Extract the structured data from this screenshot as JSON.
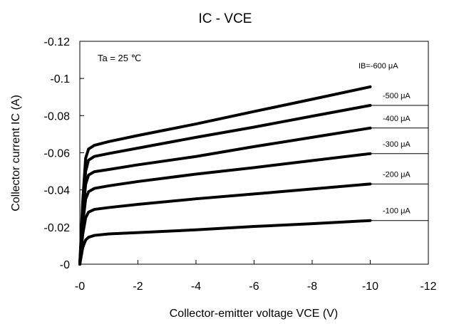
{
  "chart_data": {
    "type": "line",
    "title": "IC - VCE",
    "xlabel": "Collector-emitter voltage VCE (V)",
    "ylabel": "Collector current IC (A)",
    "xlim": [
      0,
      -12
    ],
    "ylim": [
      0,
      -0.12
    ],
    "x_ticks": [
      "-0",
      "-2",
      "-4",
      "-6",
      "-8",
      "-10",
      "-12"
    ],
    "y_ticks": [
      "-0",
      "-0.02",
      "-0.04",
      "-0.06",
      "-0.08",
      "-0.1",
      "-0.12"
    ],
    "grid": false,
    "annotation": "Ta = 25 ℃",
    "series": [
      {
        "name": "-100 μA",
        "x": [
          0,
          -0.1,
          -0.2,
          -0.3,
          -0.5,
          -1,
          -2,
          -4,
          -6,
          -8,
          -10
        ],
        "y": [
          0,
          -0.009,
          -0.013,
          -0.0145,
          -0.0155,
          -0.0163,
          -0.017,
          -0.0185,
          -0.0203,
          -0.0218,
          -0.0235
        ]
      },
      {
        "name": "-200 μA",
        "x": [
          0,
          -0.1,
          -0.2,
          -0.3,
          -0.5,
          -1,
          -2,
          -4,
          -6,
          -8,
          -10
        ],
        "y": [
          0,
          -0.016,
          -0.025,
          -0.028,
          -0.0295,
          -0.0305,
          -0.0322,
          -0.0352,
          -0.0378,
          -0.0405,
          -0.0432
        ]
      },
      {
        "name": "-300 μA",
        "x": [
          0,
          -0.1,
          -0.2,
          -0.3,
          -0.5,
          -1,
          -2,
          -4,
          -6,
          -8,
          -10
        ],
        "y": [
          0,
          -0.022,
          -0.035,
          -0.039,
          -0.0408,
          -0.0422,
          -0.0445,
          -0.0485,
          -0.052,
          -0.0558,
          -0.0595
        ]
      },
      {
        "name": "-400 μA",
        "x": [
          0,
          -0.1,
          -0.2,
          -0.3,
          -0.5,
          -1,
          -2,
          -4,
          -6,
          -8,
          -10
        ],
        "y": [
          0,
          -0.026,
          -0.043,
          -0.048,
          -0.0498,
          -0.051,
          -0.0535,
          -0.058,
          -0.0633,
          -0.0683,
          -0.0733
        ]
      },
      {
        "name": "-500 μA",
        "x": [
          0,
          -0.1,
          -0.2,
          -0.3,
          -0.5,
          -1,
          -2,
          -4,
          -6,
          -8,
          -10
        ],
        "y": [
          0,
          -0.03,
          -0.05,
          -0.056,
          -0.058,
          -0.0596,
          -0.0625,
          -0.0683,
          -0.0738,
          -0.0797,
          -0.0855
        ]
      },
      {
        "name": "IB=-600 μA",
        "x": [
          0,
          -0.1,
          -0.2,
          -0.3,
          -0.5,
          -1,
          -2,
          -4,
          -6,
          -8,
          -10
        ],
        "y": [
          0,
          -0.034,
          -0.057,
          -0.062,
          -0.064,
          -0.066,
          -0.0693,
          -0.0755,
          -0.0822,
          -0.0888,
          -0.0955
        ]
      }
    ]
  }
}
